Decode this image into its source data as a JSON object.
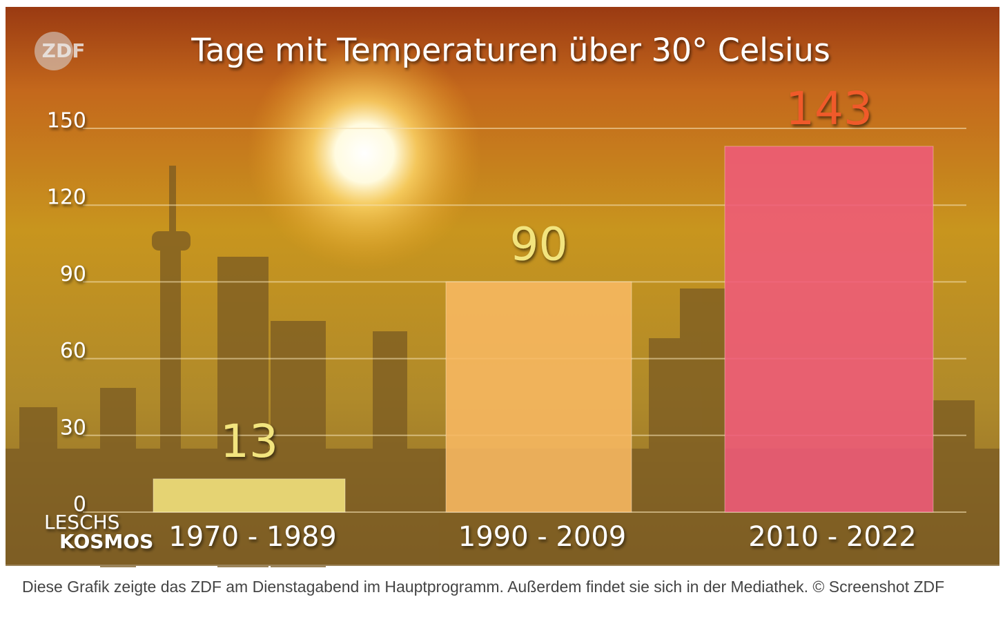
{
  "chart_data": {
    "type": "bar",
    "title": "Tage mit Temperaturen über 30° Celsius",
    "categories": [
      "1970 - 1989",
      "1990 - 2009",
      "2010 - 2022"
    ],
    "values": [
      13,
      90,
      143
    ],
    "colors": [
      "#f3e27e",
      "#f8b862",
      "#ef5a7a"
    ],
    "label_colors": [
      "#f2e47e",
      "#f2e47e",
      "#f05a2a"
    ],
    "ylim": [
      0,
      150
    ],
    "yticks": [
      0,
      30,
      60,
      90,
      120,
      150
    ],
    "grid": true
  },
  "logo": "ZDF",
  "branding": [
    "LESCHS",
    "KOSMOS"
  ],
  "caption": "Diese Grafik zeigte das ZDF am Dienstagabend im Hauptprogramm. Außerdem findet sie sich in der Mediathek. © Screenshot ZDF"
}
